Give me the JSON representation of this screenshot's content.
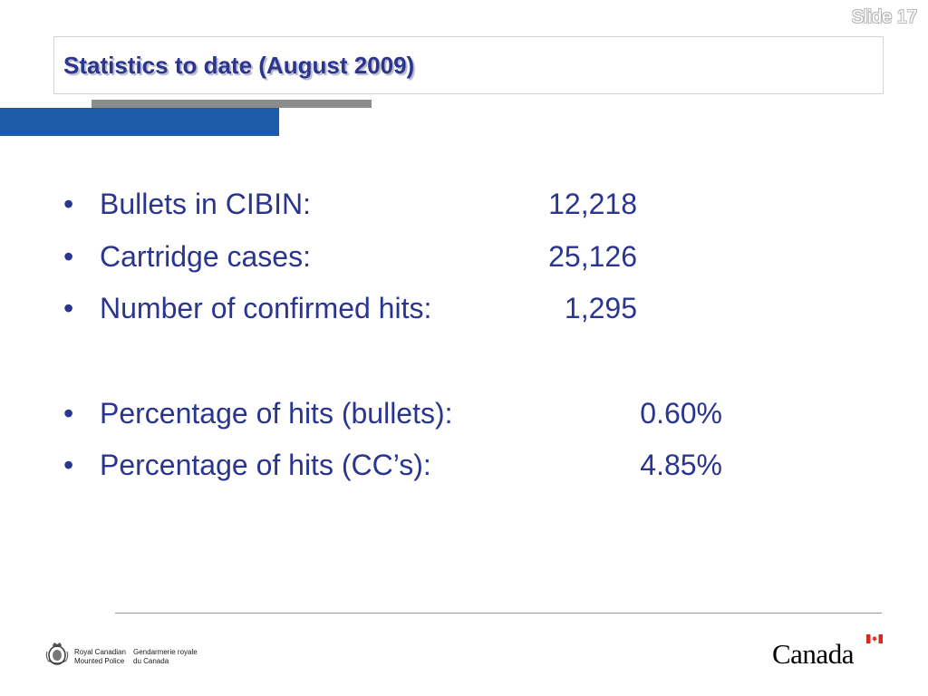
{
  "slide": {
    "number_label": "Slide 17",
    "title": "Statistics to date (August 2009)"
  },
  "bullets": [
    {
      "label": "Bullets in CIBIN:",
      "value": "12,218"
    },
    {
      "label": "Cartridge cases:",
      "value": "25,126"
    },
    {
      "label": "Number of confirmed hits:",
      "value": "1,295"
    },
    {
      "label": "Percentage of hits (bullets):",
      "value": "0.60%"
    },
    {
      "label": "Percentage of hits (CC’s):",
      "value": "4.85%"
    }
  ],
  "bullet_symbol": "•",
  "footer": {
    "rcmp_en_line1": "Royal Canadian",
    "rcmp_en_line2": "Mounted Police",
    "rcmp_fr_line1": "Gendarmerie royale",
    "rcmp_fr_line2": "du Canada",
    "wordmark": "Canada"
  },
  "colors": {
    "title_text": "#2a3590",
    "body_text": "#2a3590",
    "accent_blue": "#1c5ba8",
    "accent_gray": "#8c8c8c",
    "flag_red": "#d52b1e"
  },
  "icons": {
    "rcmp_crest": "rcmp-crest-icon",
    "canada_flag": "canada-flag-icon"
  }
}
